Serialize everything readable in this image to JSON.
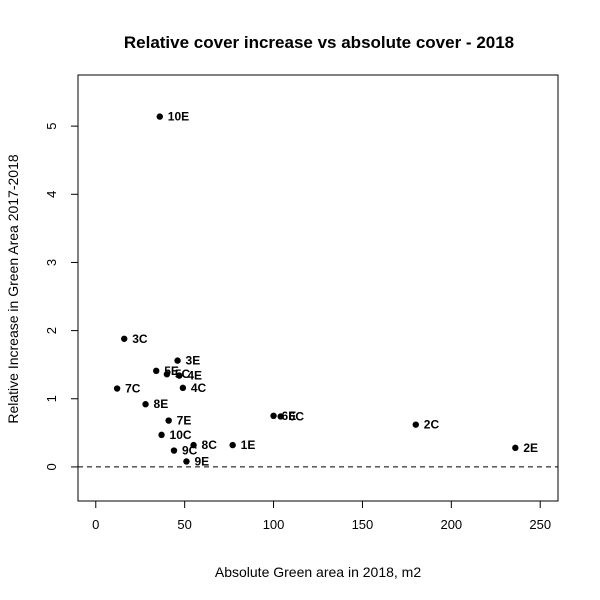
{
  "chart_data": {
    "type": "scatter",
    "title": "Relative cover increase vs absolute cover - 2018",
    "xlabel": "Absolute Green area in 2018, m2",
    "ylabel": "Relative Increase in Green Area 2017-2018",
    "xlim": [
      -10,
      260
    ],
    "ylim": [
      -0.5,
      5.75
    ],
    "x_ticks": [
      0,
      50,
      100,
      150,
      200,
      250
    ],
    "y_ticks": [
      0,
      1,
      2,
      3,
      4,
      5
    ],
    "x_tick_labels": [
      "0",
      "50",
      "100",
      "150",
      "200",
      "250"
    ],
    "y_tick_labels": [
      "0",
      "1",
      "2",
      "3",
      "4",
      "5"
    ],
    "reference_line": {
      "y": 0,
      "style": "dashed"
    },
    "grid": false,
    "points": [
      {
        "label": "10E",
        "x": 36,
        "y": 5.14
      },
      {
        "label": "3C",
        "x": 16,
        "y": 1.88
      },
      {
        "label": "3E",
        "x": 46,
        "y": 1.56
      },
      {
        "label": "5E",
        "x": 34,
        "y": 1.41
      },
      {
        "label": "5C",
        "x": 40,
        "y": 1.36
      },
      {
        "label": "4E",
        "x": 47,
        "y": 1.34
      },
      {
        "label": "4C",
        "x": 49,
        "y": 1.16
      },
      {
        "label": "7C",
        "x": 12,
        "y": 1.15
      },
      {
        "label": "8E",
        "x": 28,
        "y": 0.92
      },
      {
        "label": "6E",
        "x": 100,
        "y": 0.75
      },
      {
        "label": "6C",
        "x": 104,
        "y": 0.74
      },
      {
        "label": "7E",
        "x": 41,
        "y": 0.68
      },
      {
        "label": "2C",
        "x": 180,
        "y": 0.62
      },
      {
        "label": "10C",
        "x": 37,
        "y": 0.47
      },
      {
        "label": "8C",
        "x": 55,
        "y": 0.32
      },
      {
        "label": "1E",
        "x": 77,
        "y": 0.32
      },
      {
        "label": "2E",
        "x": 236,
        "y": 0.28
      },
      {
        "label": "9C",
        "x": 44,
        "y": 0.24
      },
      {
        "label": "9E",
        "x": 51,
        "y": 0.08
      }
    ]
  }
}
